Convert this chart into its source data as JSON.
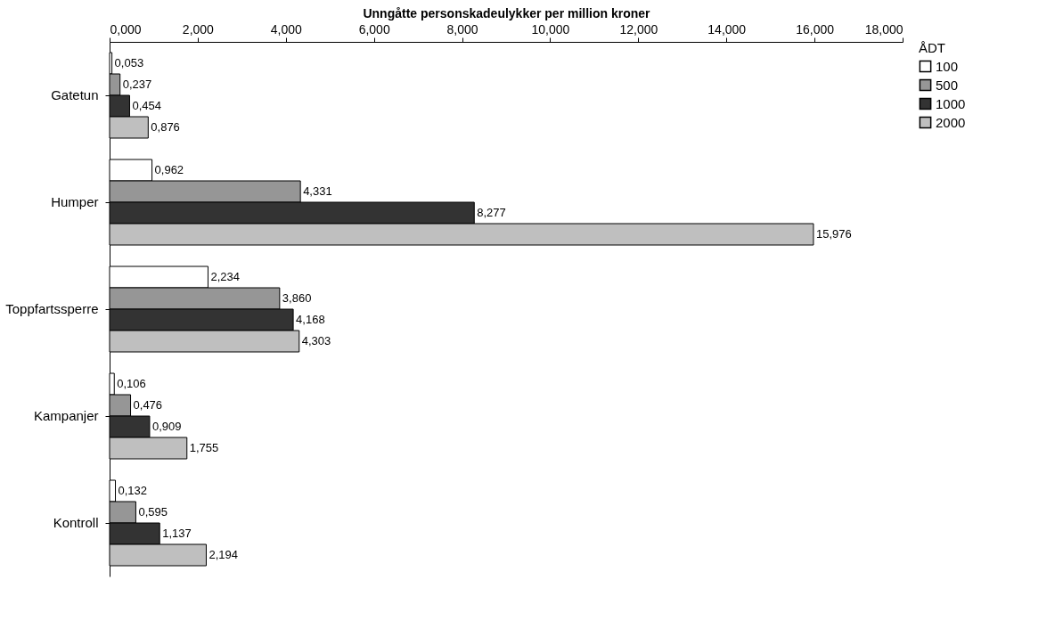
{
  "chart_data": {
    "type": "bar",
    "orientation": "horizontal",
    "xlabel": "Unngåtte personskadeulykker per million kroner",
    "legend_title": "ÅDT",
    "legend": "right",
    "grid": false,
    "categories": [
      "Gatetun",
      "Humper",
      "Toppfartssperre",
      "Kampanjer",
      "Kontroll"
    ],
    "xlim": [
      0,
      18
    ],
    "xticks": [
      {
        "value": 0,
        "label": "0,000"
      },
      {
        "value": 2,
        "label": "2,000"
      },
      {
        "value": 4,
        "label": "4,000"
      },
      {
        "value": 6,
        "label": "6,000"
      },
      {
        "value": 8,
        "label": "8,000"
      },
      {
        "value": 10,
        "label": "10,000"
      },
      {
        "value": 12,
        "label": "12,000"
      },
      {
        "value": 14,
        "label": "14,000"
      },
      {
        "value": 16,
        "label": "16,000"
      },
      {
        "value": 18,
        "label": "18,000"
      }
    ],
    "series": [
      {
        "name": "100",
        "color": "#ffffff",
        "values": [
          0.053,
          0.962,
          2.234,
          0.106,
          0.132
        ],
        "value_labels": [
          "0,053",
          "0,962",
          "2,234",
          "0,106",
          "0,132"
        ]
      },
      {
        "name": "500",
        "color": "#969696",
        "values": [
          0.237,
          4.331,
          3.86,
          0.476,
          0.595
        ],
        "value_labels": [
          "0,237",
          "4,331",
          "3,860",
          "0,476",
          "0,595"
        ]
      },
      {
        "name": "1000",
        "color": "#333333",
        "values": [
          0.454,
          8.277,
          4.168,
          0.909,
          1.137
        ],
        "value_labels": [
          "0,454",
          "8,277",
          "4,168",
          "0,909",
          "1,137"
        ]
      },
      {
        "name": "2000",
        "color": "#bfbfbf",
        "values": [
          0.876,
          15.976,
          4.303,
          1.755,
          2.194
        ],
        "value_labels": [
          "0,876",
          "15,976",
          "4,303",
          "1,755",
          "2,194"
        ]
      }
    ]
  }
}
